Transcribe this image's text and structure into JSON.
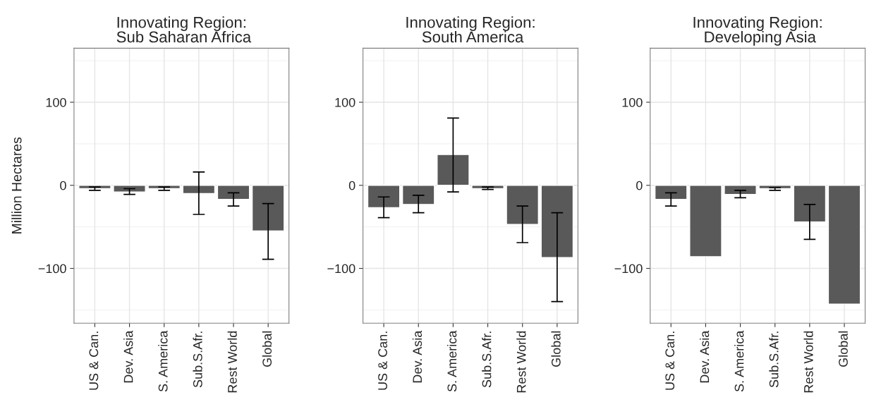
{
  "chart_data": [
    {
      "type": "bar",
      "title": "Innovating Region:\n Sub Saharan Africa",
      "ylabel": "Million Hectares",
      "categories": [
        "US & Can.",
        "Dev. Asia",
        "S. America",
        "Sub.S.Afr.",
        "Rest World",
        "Global"
      ],
      "color": "#595959",
      "values": [
        -4,
        -8,
        -4,
        -10,
        -17,
        -55
      ],
      "errors": [
        [
          -6,
          -2
        ],
        [
          -11,
          -4
        ],
        [
          -6,
          -2
        ],
        [
          -35,
          16
        ],
        [
          -25,
          -9
        ],
        [
          -89,
          -22
        ]
      ],
      "ylim": [
        -166,
        165
      ],
      "yticks": [
        -100,
        0,
        100
      ],
      "grid": true
    },
    {
      "type": "bar",
      "title": "Innovating Region:\n South America",
      "categories": [
        "US & Can.",
        "Dev. Asia",
        "S. America",
        "Sub.S.Afr.",
        "Rest World",
        "Global"
      ],
      "color": "#595959",
      "values": [
        -27,
        -23,
        37,
        -4,
        -47,
        -87
      ],
      "errors": [
        [
          -39,
          -14
        ],
        [
          -33,
          -12
        ],
        [
          -8,
          81
        ],
        [
          -5,
          -2
        ],
        [
          -69,
          -25
        ],
        [
          -140,
          -33
        ]
      ],
      "ylim": [
        -166,
        165
      ],
      "yticks": [
        -100,
        0,
        100
      ],
      "grid": true
    },
    {
      "type": "bar",
      "title": "Innovating Region:\n Developing Asia",
      "categories": [
        "US & Can.",
        "Dev. Asia",
        "S. America",
        "Sub.S.Afr.",
        "Rest World",
        "Global"
      ],
      "color": "#595959",
      "values": [
        -17,
        -86,
        -11,
        -4,
        -44,
        -143
      ],
      "errors": [
        [
          -25,
          -9
        ],
        null,
        [
          -15,
          -6
        ],
        [
          -6,
          -3
        ],
        [
          -65,
          -23
        ],
        null
      ],
      "ylim": [
        -166,
        165
      ],
      "yticks": [
        -100,
        0,
        100
      ],
      "grid": true
    }
  ]
}
